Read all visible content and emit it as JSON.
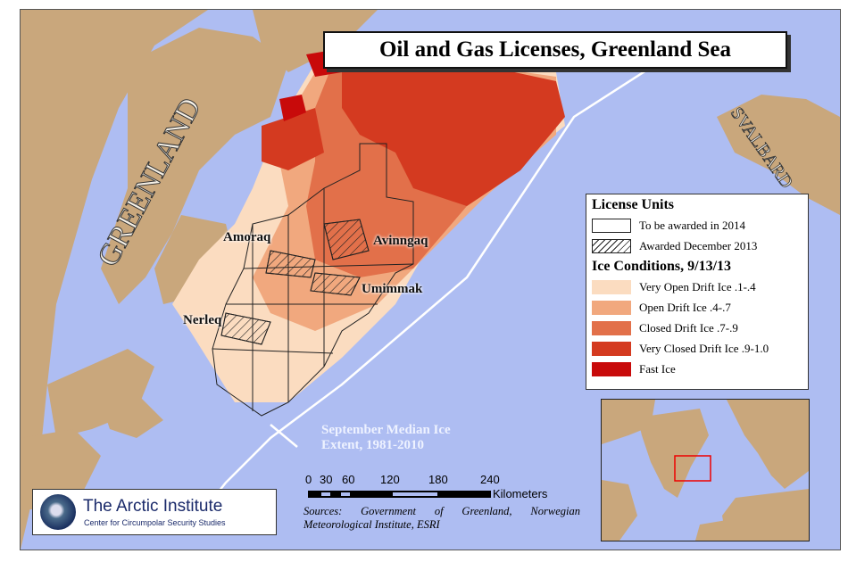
{
  "title": "Oil and Gas Licenses, Greenland Sea",
  "map_labels": {
    "greenland": "GREENLAND",
    "svalbard": "SVALBARD",
    "amoraq": "Amoraq",
    "avinngaq": "Avinngaq",
    "umimmak": "Umimmak",
    "nerleq": "Nerleq"
  },
  "ice_extent_label": [
    "September Median Ice",
    "Extent, 1981-2010"
  ],
  "legend": {
    "license_heading": "License Units",
    "license_items": [
      {
        "label": "To be awarded in 2014",
        "style": "empty"
      },
      {
        "label": "Awarded December 2013",
        "style": "hatched"
      }
    ],
    "ice_heading": "Ice Conditions, 9/13/13",
    "ice_items": [
      {
        "label": "Very Open Drift Ice .1-.4",
        "color": "#fbdcc0"
      },
      {
        "label": "Open Drift Ice .4-.7",
        "color": "#f1a87e"
      },
      {
        "label": "Closed Drift Ice .7-.9",
        "color": "#e2704a"
      },
      {
        "label": "Very Closed Drift Ice .9-1.0",
        "color": "#d43a20"
      },
      {
        "label": "Fast Ice",
        "color": "#c80a0a"
      }
    ]
  },
  "scale_bar": {
    "ticks": [
      "0",
      "30",
      "60",
      "120",
      "180",
      "240"
    ],
    "unit": "Kilometers"
  },
  "sources": "Sources: Government of Greenland, Norwegian Meteorological Institute, ESRI",
  "logo": {
    "name": "The Arctic Institute",
    "subtitle": "Center for Circumpolar Security Studies"
  },
  "colors": {
    "sea": "#aebdf2",
    "land": "#c9a77c"
  }
}
